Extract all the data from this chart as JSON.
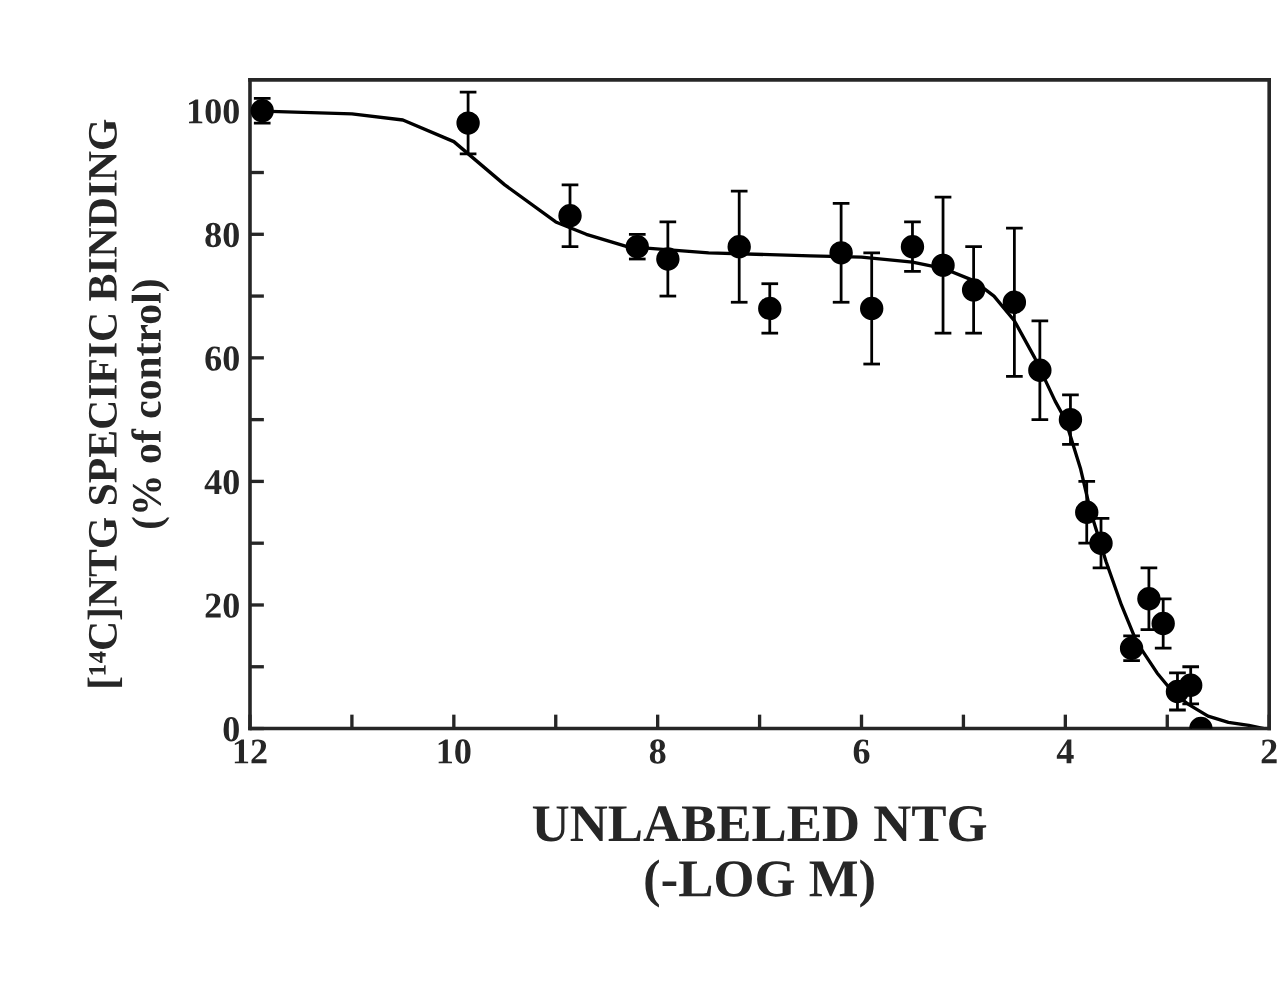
{
  "chart_data": {
    "type": "scatter",
    "xlabel": "UNLABELED NTG\n(-LOG M)",
    "ylabel": "[¹⁴C]NTG SPECIFIC BINDING\n(% of control)",
    "xlim": [
      12,
      2
    ],
    "ylim": [
      0,
      105
    ],
    "xticks": [
      12,
      {
        "value": 11,
        "label": null
      },
      10,
      {
        "value": 9,
        "label": null
      },
      8,
      {
        "value": 7,
        "label": null
      },
      6,
      {
        "value": 5,
        "label": null
      },
      4,
      {
        "value": 3,
        "label": null
      },
      2
    ],
    "yticks": [
      0,
      {
        "value": 10,
        "label": null
      },
      20,
      {
        "value": 30,
        "label": null
      },
      40,
      {
        "value": 50,
        "label": null
      },
      60,
      {
        "value": 70,
        "label": null
      },
      80,
      {
        "value": 90,
        "label": null
      },
      100
    ],
    "grid": false,
    "series": [
      {
        "marker": "circle",
        "color": "#000000",
        "x": [
          11.88,
          9.86,
          8.86,
          8.2,
          7.9,
          7.2,
          6.9,
          6.2,
          5.9,
          5.5,
          5.2,
          4.9,
          4.5,
          4.25,
          3.95,
          3.79,
          3.65,
          3.35,
          3.18,
          3.04,
          2.9,
          2.77,
          2.67
        ],
        "values": [
          100,
          98,
          83,
          78,
          76,
          78,
          68,
          77,
          68,
          78,
          75,
          71,
          69,
          58,
          50,
          35,
          30,
          13,
          21,
          17,
          6,
          7,
          0
        ],
        "errors": [
          2,
          5,
          5,
          2,
          6,
          9,
          4,
          8,
          9,
          4,
          11,
          7,
          12,
          8,
          4,
          5,
          4,
          2,
          5,
          4,
          3,
          3,
          null
        ]
      },
      {
        "type": "line",
        "marker": "none",
        "color": "#000000",
        "line_style": "solid",
        "x": [
          12,
          11,
          10.5,
          10,
          9.5,
          9,
          8.7,
          8.3,
          7.5,
          6.5,
          6,
          5.5,
          5.2,
          4.9,
          4.7,
          4.5,
          4.3,
          4.1,
          4.0,
          3.85,
          3.75,
          3.6,
          3.45,
          3.3,
          3.1,
          2.95,
          2.8,
          2.6,
          2.4,
          2.2,
          2.05
        ],
        "values": [
          100,
          99.5,
          98.5,
          95,
          88,
          82,
          80,
          78,
          77,
          76.5,
          76.3,
          75.5,
          74.5,
          72.5,
          70,
          66,
          60,
          53,
          50,
          42,
          35,
          27,
          20,
          14,
          9,
          6,
          4,
          2,
          1,
          0.5,
          0
        ]
      }
    ]
  }
}
